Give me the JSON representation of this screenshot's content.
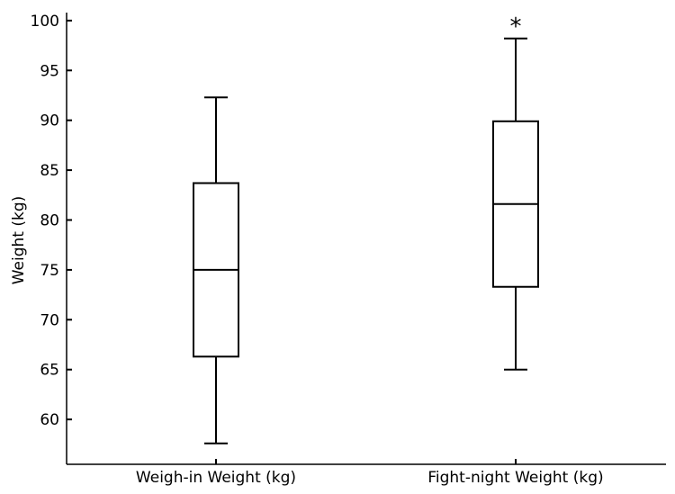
{
  "chart_data": {
    "type": "box",
    "categories": [
      "Weigh-in Weight (kg)",
      "Fight-night Weight (kg)"
    ],
    "boxes": [
      {
        "label": "Weigh-in Weight (kg)",
        "whisker_low": 57.6,
        "q1": 66.3,
        "median": 75.0,
        "q3": 83.7,
        "whisker_high": 92.3,
        "annotation": ""
      },
      {
        "label": "Fight-night Weight (kg)",
        "whisker_low": 65.0,
        "q1": 73.3,
        "median": 81.6,
        "q3": 89.9,
        "whisker_high": 98.2,
        "annotation": "*"
      }
    ],
    "ylabel": "Weight (kg)",
    "xlabel": "",
    "ylim": [
      55.5,
      100.8
    ],
    "yticks": [
      60,
      65,
      70,
      75,
      80,
      85,
      90,
      95,
      100
    ],
    "grid": false,
    "colors": {
      "stroke": "#000000",
      "box_fill": "#ffffff"
    }
  }
}
